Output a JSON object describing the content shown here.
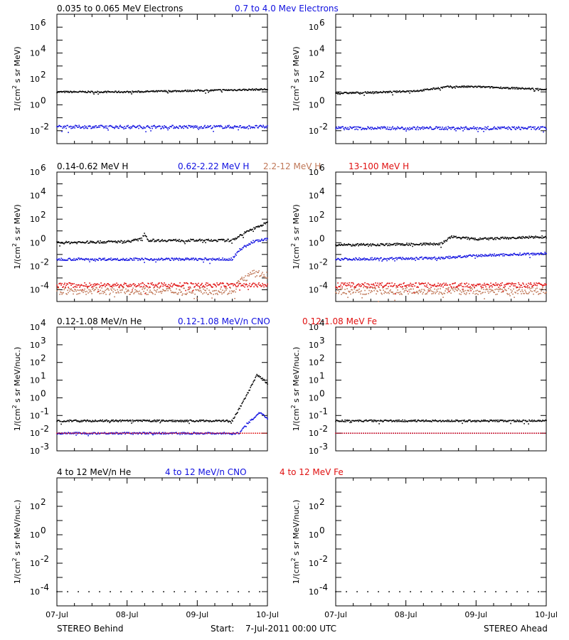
{
  "footer": {
    "behind": "STEREO Behind",
    "ahead": "STEREO Ahead",
    "start_label": "Start:",
    "start_value": "7-Jul-2011 00:00 UTC"
  },
  "x_ticks": [
    "07-Jul",
    "08-Jul",
    "09-Jul",
    "10-Jul"
  ],
  "colors": {
    "black": "#000000",
    "blue": "#1010e0",
    "tan": "#c07858",
    "red": "#e01010"
  },
  "chart_data": [
    {
      "type": "scatter",
      "row": 1,
      "ylabel_parts": [
        "1/(cm",
        "2",
        " s sr MeV)"
      ],
      "y_log_range": [
        -3,
        7
      ],
      "y_ticks": [
        {
          "base": "10",
          "exp": "6"
        },
        {
          "base": "10",
          "exp": "4"
        },
        {
          "base": "10",
          "exp": "2"
        },
        {
          "base": "10",
          "exp": "0"
        },
        {
          "base": "10",
          "exp": "-2"
        }
      ],
      "y_tick_exps": [
        6,
        4,
        2,
        0,
        -2
      ],
      "legend": [
        {
          "label": "0.035 to 0.065 MeV Electrons",
          "color": "#000000"
        },
        {
          "label": "0.7 to 4.0 Mev Electrons",
          "color": "#1010e0"
        }
      ],
      "panels": [
        {
          "series": [
            {
              "color": "#000000",
              "x_days": [
                0,
                0.5,
                1,
                1.5,
                2,
                2.5,
                3
              ],
              "log_y": [
                1.0,
                1.0,
                1.0,
                1.05,
                1.1,
                1.15,
                1.2
              ],
              "spread": 0.06
            },
            {
              "color": "#1010e0",
              "x_days": [
                0,
                3
              ],
              "log_y": [
                -1.7,
                -1.7
              ],
              "spread": 0.12
            }
          ]
        },
        {
          "series": [
            {
              "color": "#000000",
              "x_days": [
                0,
                0.8,
                1.2,
                1.6,
                2.0,
                2.5,
                3
              ],
              "log_y": [
                0.9,
                1.0,
                1.1,
                1.4,
                1.4,
                1.3,
                1.2
              ],
              "spread": 0.06
            },
            {
              "color": "#1010e0",
              "x_days": [
                0,
                3
              ],
              "log_y": [
                -1.8,
                -1.8
              ],
              "spread": 0.12
            }
          ]
        }
      ]
    },
    {
      "type": "scatter",
      "row": 2,
      "ylabel_parts": [
        "1/(cm",
        "2",
        " s sr MeV)"
      ],
      "y_log_range": [
        -5,
        6
      ],
      "y_ticks": [
        {
          "base": "10",
          "exp": "6"
        },
        {
          "base": "10",
          "exp": "4"
        },
        {
          "base": "10",
          "exp": "2"
        },
        {
          "base": "10",
          "exp": "0"
        },
        {
          "base": "10",
          "exp": "-2"
        },
        {
          "base": "10",
          "exp": "-4"
        }
      ],
      "y_tick_exps": [
        6,
        4,
        2,
        0,
        -2,
        -4
      ],
      "legend": [
        {
          "label": "0.14-0.62 MeV H",
          "color": "#000000"
        },
        {
          "label": "0.62-2.22 MeV H",
          "color": "#1010e0"
        },
        {
          "label": "2.2-12 MeV H",
          "color": "#c07858"
        },
        {
          "label": "13-100 MeV H",
          "color": "#e01010"
        }
      ],
      "panels": [
        {
          "series": [
            {
              "color": "#000000",
              "x_days": [
                0,
                1.0,
                1.2,
                1.25,
                1.3,
                2.0,
                2.5,
                2.6,
                2.8,
                3
              ],
              "log_y": [
                0.0,
                0.1,
                0.3,
                0.8,
                0.2,
                0.2,
                0.2,
                0.6,
                1.2,
                1.7
              ],
              "spread": 0.1
            },
            {
              "color": "#1010e0",
              "x_days": [
                0,
                2.5,
                2.6,
                2.8,
                3
              ],
              "log_y": [
                -1.4,
                -1.4,
                -0.6,
                0.1,
                0.3
              ],
              "spread": 0.1
            },
            {
              "color": "#c07858",
              "x_days": [
                0,
                2.5,
                2.6,
                2.8,
                3
              ],
              "log_y": [
                -4.1,
                -4.1,
                -3.3,
                -2.6,
                -2.8
              ],
              "spread": 0.3
            },
            {
              "color": "#e01010",
              "x_days": [
                0,
                3
              ],
              "log_y": [
                -3.6,
                -3.6
              ],
              "spread": 0.2
            }
          ]
        },
        {
          "series": [
            {
              "color": "#000000",
              "x_days": [
                0,
                1.5,
                1.65,
                2.0,
                2.5,
                3
              ],
              "log_y": [
                -0.2,
                -0.1,
                0.5,
                0.3,
                0.4,
                0.5
              ],
              "spread": 0.1
            },
            {
              "color": "#1010e0",
              "x_days": [
                0,
                1.5,
                2.0,
                3
              ],
              "log_y": [
                -1.4,
                -1.3,
                -1.1,
                -0.9
              ],
              "spread": 0.1
            },
            {
              "color": "#c07858",
              "x_days": [
                0,
                3
              ],
              "log_y": [
                -4.1,
                -4.1
              ],
              "spread": 0.3
            },
            {
              "color": "#e01010",
              "x_days": [
                0,
                3
              ],
              "log_y": [
                -3.6,
                -3.6
              ],
              "spread": 0.2
            }
          ]
        }
      ]
    },
    {
      "type": "scatter",
      "row": 3,
      "ylabel_parts": [
        "1/(cm",
        "2",
        " s sr MeV/nuc.)"
      ],
      "y_log_range": [
        -3,
        4
      ],
      "y_ticks": [
        {
          "base": "10",
          "exp": "4"
        },
        {
          "base": "10",
          "exp": "3"
        },
        {
          "base": "10",
          "exp": "2"
        },
        {
          "base": "10",
          "exp": "1"
        },
        {
          "base": "10",
          "exp": "0"
        },
        {
          "base": "10",
          "exp": "-1"
        },
        {
          "base": "10",
          "exp": "-2"
        },
        {
          "base": "10",
          "exp": "-3"
        }
      ],
      "y_tick_exps": [
        4,
        3,
        2,
        1,
        0,
        -1,
        -2,
        -3
      ],
      "legend": [
        {
          "label": "0.12-1.08 MeV/n He",
          "color": "#000000"
        },
        {
          "label": "0.12-1.08 MeV/n CNO",
          "color": "#1010e0"
        },
        {
          "label": "0.12-1.08 MeV Fe",
          "color": "#e01010"
        }
      ],
      "panels": [
        {
          "series": [
            {
              "color": "#000000",
              "x_days": [
                0,
                2.5,
                2.6,
                2.75,
                2.85,
                2.95,
                3
              ],
              "log_y": [
                -1.3,
                -1.3,
                -0.6,
                0.5,
                1.3,
                1.0,
                0.8
              ],
              "spread": 0.05
            },
            {
              "color": "#1010e0",
              "x_days": [
                0,
                2.6,
                2.7,
                2.9,
                3
              ],
              "log_y": [
                -2.0,
                -2.0,
                -1.5,
                -0.8,
                -1.2
              ],
              "spread": 0.05
            },
            {
              "color": "#e01010",
              "x_days": [
                0,
                3
              ],
              "log_y": [
                -2.0,
                -2.0
              ],
              "spread": 0.0
            }
          ]
        },
        {
          "series": [
            {
              "color": "#000000",
              "x_days": [
                0,
                3
              ],
              "log_y": [
                -1.3,
                -1.3
              ],
              "spread": 0.05
            },
            {
              "color": "#1010e0",
              "x_days": [
                0,
                3
              ],
              "log_y": [
                -2.0,
                -2.0
              ],
              "spread": 0.0
            },
            {
              "color": "#e01010",
              "x_days": [
                0,
                3
              ],
              "log_y": [
                -2.0,
                -2.0
              ],
              "spread": 0.0
            }
          ]
        }
      ]
    },
    {
      "type": "scatter",
      "row": 4,
      "ylabel_parts": [
        "1/(cm",
        "2",
        " s sr MeV/nuc.)"
      ],
      "y_log_range": [
        -5,
        4
      ],
      "y_ticks": [
        {
          "base": "10",
          "exp": "2"
        },
        {
          "base": "10",
          "exp": "0"
        },
        {
          "base": "10",
          "exp": "-2"
        },
        {
          "base": "10",
          "exp": "-4"
        }
      ],
      "y_tick_exps": [
        2,
        0,
        -2,
        -4
      ],
      "legend": [
        {
          "label": "4 to 12 MeV/n He",
          "color": "#000000"
        },
        {
          "label": "4 to 12 MeV/n CNO",
          "color": "#1010e0"
        },
        {
          "label": "4 to 12 MeV Fe",
          "color": "#e01010"
        }
      ],
      "panels": [
        {
          "series": [
            {
              "color": "#000000",
              "x_days": [
                0,
                3
              ],
              "log_y": [
                -4.0,
                -4.0
              ],
              "spread": 0.0
            }
          ]
        },
        {
          "series": [
            {
              "color": "#000000",
              "x_days": [
                0,
                3
              ],
              "log_y": [
                -4.0,
                -4.0
              ],
              "spread": 0.0
            }
          ]
        }
      ]
    }
  ]
}
